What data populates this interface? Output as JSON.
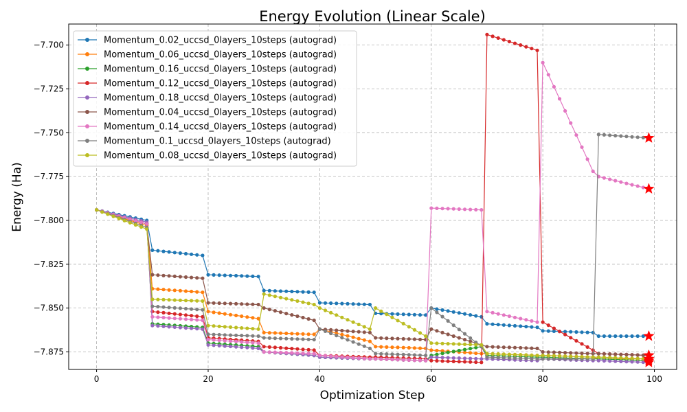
{
  "chart_data": {
    "type": "line",
    "title": "Energy Evolution (Linear Scale)",
    "xlabel": "Optimization Step",
    "ylabel": "Energy (Ha)",
    "xlim": [
      -5,
      104
    ],
    "ylim": [
      -7.885,
      -7.688
    ],
    "xticks": [
      0,
      20,
      40,
      60,
      80,
      100
    ],
    "yticks": [
      -7.875,
      -7.85,
      -7.825,
      -7.8,
      -7.775,
      -7.75,
      -7.725,
      -7.7
    ],
    "ytick_labels": [
      "−7.875",
      "−7.850",
      "−7.825",
      "−7.800",
      "−7.775",
      "−7.750",
      "−7.725",
      "−7.700"
    ],
    "grid": true,
    "legend_position": "upper-left",
    "final_marker": "red-star",
    "series": [
      {
        "name": "Momentum_0.02_uccsd_0layers_10steps (autograd)",
        "color": "#1f77b4",
        "segments": [
          [
            -7.794,
            -7.8
          ],
          [
            -7.817,
            -7.82
          ],
          [
            -7.831,
            -7.832
          ],
          [
            -7.84,
            -7.841
          ],
          [
            -7.847,
            -7.848
          ],
          [
            -7.853,
            -7.854
          ],
          [
            -7.85,
            -7.855
          ],
          [
            -7.859,
            -7.861
          ],
          [
            -7.863,
            -7.864
          ],
          [
            -7.866,
            -7.866
          ]
        ]
      },
      {
        "name": "Momentum_0.06_uccsd_0layers_10steps (autograd)",
        "color": "#ff7f0e",
        "segments": [
          [
            -7.794,
            -7.803
          ],
          [
            -7.839,
            -7.841
          ],
          [
            -7.852,
            -7.856
          ],
          [
            -7.864,
            -7.865
          ],
          [
            -7.862,
            -7.869
          ],
          [
            -7.872,
            -7.873
          ],
          [
            -7.874,
            -7.876
          ],
          [
            -7.876,
            -7.877
          ],
          [
            -7.877,
            -7.878
          ],
          [
            -7.879,
            -7.879
          ]
        ]
      },
      {
        "name": "Momentum_0.16_uccsd_0layers_10steps (autograd)",
        "color": "#2ca02c",
        "segments": [
          [
            -7.794,
            -7.802
          ],
          [
            -7.859,
            -7.861
          ],
          [
            -7.87,
            -7.872
          ],
          [
            -7.875,
            -7.877
          ],
          [
            -7.878,
            -7.879
          ],
          [
            -7.879,
            -7.88
          ],
          [
            -7.877,
            -7.872
          ],
          [
            -7.877,
            -7.878
          ],
          [
            -7.878,
            -7.879
          ],
          [
            -7.879,
            -7.88
          ]
        ]
      },
      {
        "name": "Momentum_0.12_uccsd_0layers_10steps (autograd)",
        "color": "#d62728",
        "segments": [
          [
            -7.794,
            -7.802
          ],
          [
            -7.852,
            -7.855
          ],
          [
            -7.867,
            -7.869
          ],
          [
            -7.872,
            -7.874
          ],
          [
            -7.877,
            -7.878
          ],
          [
            -7.878,
            -7.879
          ],
          [
            -7.88,
            -7.881
          ],
          [
            -7.694,
            -7.703
          ],
          [
            -7.858,
            -7.874
          ],
          [
            -7.876,
            -7.877
          ]
        ]
      },
      {
        "name": "Momentum_0.18_uccsd_0layers_10steps (autograd)",
        "color": "#9467bd",
        "segments": [
          [
            -7.794,
            -7.801
          ],
          [
            -7.86,
            -7.862
          ],
          [
            -7.871,
            -7.873
          ],
          [
            -7.875,
            -7.877
          ],
          [
            -7.878,
            -7.879
          ],
          [
            -7.879,
            -7.88
          ],
          [
            -7.878,
            -7.879
          ],
          [
            -7.879,
            -7.88
          ],
          [
            -7.879,
            -7.88
          ],
          [
            -7.88,
            -7.881
          ]
        ]
      },
      {
        "name": "Momentum_0.04_uccsd_0layers_10steps (autograd)",
        "color": "#8c564b",
        "segments": [
          [
            -7.794,
            -7.802
          ],
          [
            -7.831,
            -7.833
          ],
          [
            -7.847,
            -7.848
          ],
          [
            -7.85,
            -7.857
          ],
          [
            -7.862,
            -7.864
          ],
          [
            -7.867,
            -7.868
          ],
          [
            -7.862,
            -7.871
          ],
          [
            -7.872,
            -7.873
          ],
          [
            -7.875,
            -7.876
          ],
          [
            -7.876,
            -7.877
          ]
        ]
      },
      {
        "name": "Momentum_0.14_uccsd_0layers_10steps (autograd)",
        "color": "#e377c2",
        "segments": [
          [
            -7.794,
            -7.802
          ],
          [
            -7.855,
            -7.857
          ],
          [
            -7.868,
            -7.87
          ],
          [
            -7.875,
            -7.876
          ],
          [
            -7.877,
            -7.879
          ],
          [
            -7.879,
            -7.88
          ],
          [
            -7.793,
            -7.794
          ],
          [
            -7.852,
            -7.858
          ],
          [
            -7.71,
            -7.772
          ],
          [
            -7.775,
            -7.782
          ]
        ]
      },
      {
        "name": "Momentum_0.1_uccsd_0layers_10steps (autograd)",
        "color": "#7f7f7f",
        "segments": [
          [
            -7.794,
            -7.804
          ],
          [
            -7.849,
            -7.851
          ],
          [
            -7.865,
            -7.866
          ],
          [
            -7.867,
            -7.868
          ],
          [
            -7.862,
            -7.873
          ],
          [
            -7.876,
            -7.877
          ],
          [
            -7.85,
            -7.872
          ],
          [
            -7.878,
            -7.879
          ],
          [
            -7.879,
            -7.879
          ],
          [
            -7.751,
            -7.753
          ]
        ]
      },
      {
        "name": "Momentum_0.08_uccsd_0layers_10steps (autograd)",
        "color": "#bcbd22",
        "segments": [
          [
            -7.794,
            -7.805
          ],
          [
            -7.845,
            -7.846
          ],
          [
            -7.86,
            -7.862
          ],
          [
            -7.842,
            -7.848
          ],
          [
            -7.85,
            -7.862
          ],
          [
            -7.85,
            -7.866
          ],
          [
            -7.87,
            -7.871
          ],
          [
            -7.876,
            -7.877
          ],
          [
            -7.877,
            -7.878
          ],
          [
            -7.878,
            -7.879
          ]
        ]
      }
    ]
  }
}
